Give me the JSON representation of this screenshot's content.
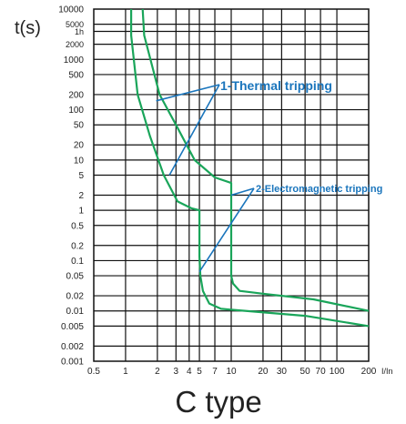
{
  "chart_data": {
    "type": "line",
    "title": "C type",
    "ylabel": "t(s)",
    "xlabel": "I/In",
    "x_scale": "log",
    "y_scale": "log",
    "xlim": [
      0.5,
      200
    ],
    "ylim": [
      0.001,
      10000
    ],
    "grid": true,
    "x_ticks": [
      {
        "v": 0.5,
        "label": "0.5"
      },
      {
        "v": 1,
        "label": "1"
      },
      {
        "v": 2,
        "label": "2"
      },
      {
        "v": 3,
        "label": "3"
      },
      {
        "v": 4,
        "label": "4"
      },
      {
        "v": 5,
        "label": "5"
      },
      {
        "v": 7,
        "label": "7"
      },
      {
        "v": 10,
        "label": "10"
      },
      {
        "v": 20,
        "label": "20"
      },
      {
        "v": 30,
        "label": "30"
      },
      {
        "v": 50,
        "label": "50"
      },
      {
        "v": 70,
        "label": "70"
      },
      {
        "v": 100,
        "label": "100"
      },
      {
        "v": 200,
        "label": "200"
      }
    ],
    "y_ticks": [
      {
        "v": 10000,
        "label": "10000"
      },
      {
        "v": 5000,
        "label": "5000"
      },
      {
        "v": 3600,
        "label": "1h"
      },
      {
        "v": 2000,
        "label": "2000"
      },
      {
        "v": 1000,
        "label": "1000"
      },
      {
        "v": 500,
        "label": "500"
      },
      {
        "v": 200,
        "label": "200"
      },
      {
        "v": 100,
        "label": "100"
      },
      {
        "v": 50,
        "label": "50"
      },
      {
        "v": 20,
        "label": "20"
      },
      {
        "v": 10,
        "label": "10"
      },
      {
        "v": 5,
        "label": "5"
      },
      {
        "v": 2,
        "label": "2"
      },
      {
        "v": 1,
        "label": "1"
      },
      {
        "v": 0.5,
        "label": "0.5"
      },
      {
        "v": 0.2,
        "label": "0.2"
      },
      {
        "v": 0.1,
        "label": "0.1"
      },
      {
        "v": 0.05,
        "label": "0.05"
      },
      {
        "v": 0.02,
        "label": "0.02"
      },
      {
        "v": 0.01,
        "label": "0.01"
      },
      {
        "v": 0.005,
        "label": "0.005"
      },
      {
        "v": 0.002,
        "label": "0.002"
      },
      {
        "v": 0.001,
        "label": "0.001"
      }
    ],
    "series": [
      {
        "color": "#1aa55a",
        "points": [
          [
            1.13,
            10000
          ],
          [
            1.13,
            3000
          ],
          [
            1.3,
            200
          ],
          [
            1.7,
            30
          ],
          [
            2.3,
            5
          ],
          [
            3.1,
            1.5
          ],
          [
            4.2,
            1.1
          ],
          [
            5,
            1
          ],
          [
            5,
            0.12
          ],
          [
            5.1,
            0.05
          ],
          [
            5.4,
            0.025
          ],
          [
            6.2,
            0.014
          ],
          [
            8,
            0.011
          ],
          [
            50,
            0.008
          ],
          [
            200,
            0.005
          ]
        ]
      },
      {
        "color": "#1aa55a",
        "points": [
          [
            1.45,
            10000
          ],
          [
            1.5,
            3000
          ],
          [
            2.1,
            200
          ],
          [
            3,
            50
          ],
          [
            4.5,
            10
          ],
          [
            7,
            4.5
          ],
          [
            10,
            3.5
          ],
          [
            10,
            0.05
          ],
          [
            10.4,
            0.035
          ],
          [
            12,
            0.025
          ],
          [
            20,
            0.022
          ],
          [
            60,
            0.017
          ],
          [
            200,
            0.01
          ]
        ]
      }
    ],
    "annotations": [
      {
        "text": "1-Thermal tripping",
        "color": "#1a75bc",
        "pointers": [
          [
            1.95,
            150
          ],
          [
            2.6,
            5
          ]
        ]
      },
      {
        "text": "2-Electromagnetic tripping",
        "color": "#1a75bc",
        "pointers": [
          [
            10,
            2
          ],
          [
            5,
            0.06
          ]
        ]
      }
    ]
  }
}
